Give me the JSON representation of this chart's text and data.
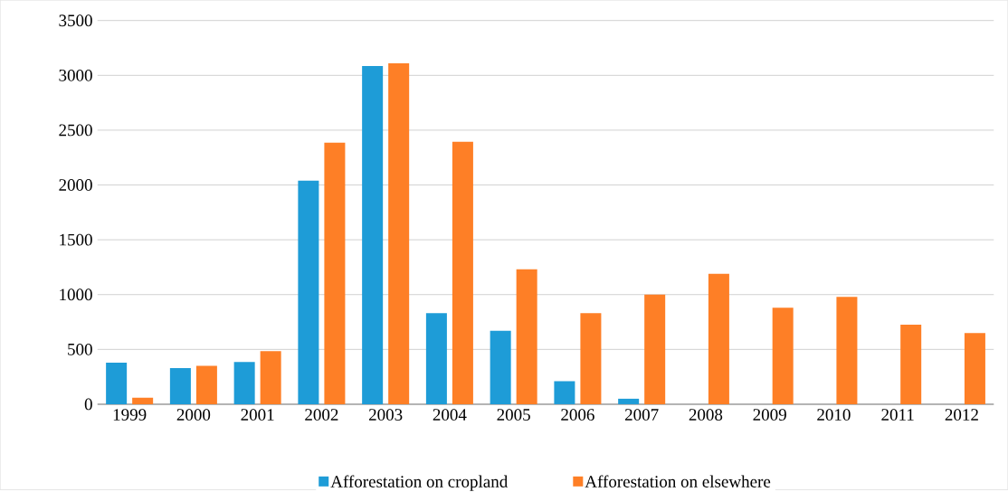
{
  "chart_data": {
    "type": "bar",
    "categories": [
      "1999",
      "2000",
      "2001",
      "2002",
      "2003",
      "2004",
      "2005",
      "2006",
      "2007",
      "2008",
      "2009",
      "2010",
      "2011",
      "2012"
    ],
    "series": [
      {
        "name": "Afforestation on cropland",
        "color": "#1e9cd7",
        "values": [
          380,
          330,
          385,
          2040,
          3085,
          830,
          670,
          210,
          50,
          0,
          0,
          0,
          0,
          0
        ]
      },
      {
        "name": "Afforestation on elsewhere",
        "color": "#fe7f26",
        "values": [
          60,
          350,
          485,
          2385,
          3110,
          2395,
          1230,
          830,
          1000,
          1190,
          880,
          980,
          725,
          650
        ]
      }
    ],
    "ylim": [
      0,
      3500
    ],
    "yticks": [
      0,
      500,
      1000,
      1500,
      2000,
      2500,
      3000,
      3500
    ],
    "grid": "y",
    "legend": "bottom"
  }
}
